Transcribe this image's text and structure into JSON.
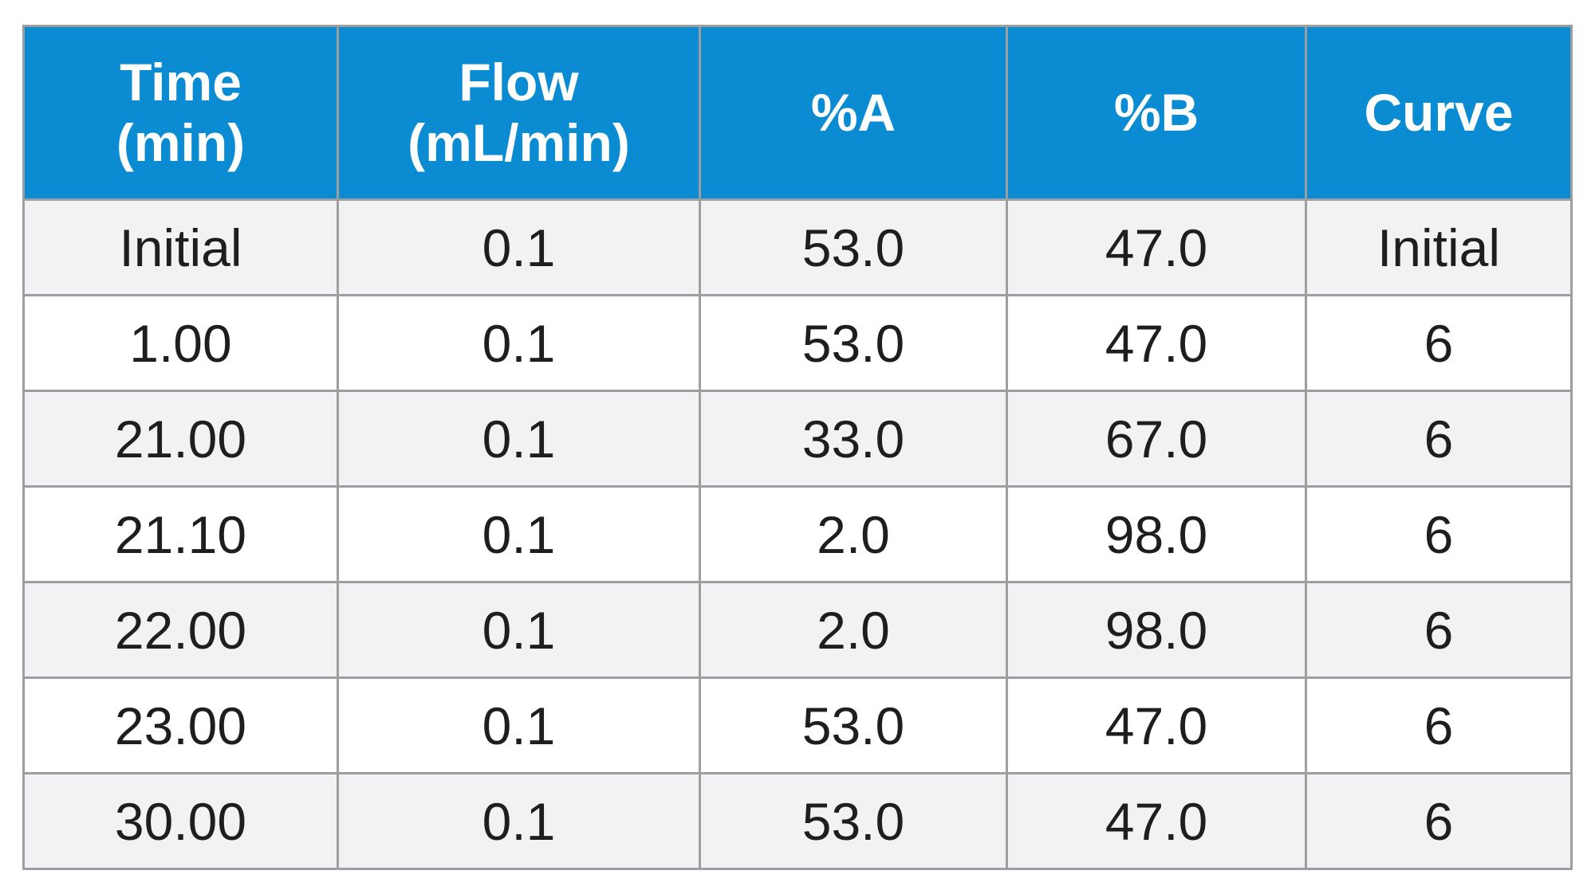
{
  "table": {
    "header": [
      "Time\n(min)",
      "Flow\n(mL/min)",
      "%A",
      "%B",
      "Curve"
    ],
    "rows": [
      [
        "Initial",
        "0.1",
        "53.0",
        "47.0",
        "Initial"
      ],
      [
        "1.00",
        "0.1",
        "53.0",
        "47.0",
        "6"
      ],
      [
        "21.00",
        "0.1",
        "33.0",
        "67.0",
        "6"
      ],
      [
        "21.10",
        "0.1",
        "2.0",
        "98.0",
        "6"
      ],
      [
        "22.00",
        "0.1",
        "2.0",
        "98.0",
        "6"
      ],
      [
        "23.00",
        "0.1",
        "53.0",
        "47.0",
        "6"
      ],
      [
        "30.00",
        "0.1",
        "53.0",
        "47.0",
        "6"
      ]
    ]
  }
}
